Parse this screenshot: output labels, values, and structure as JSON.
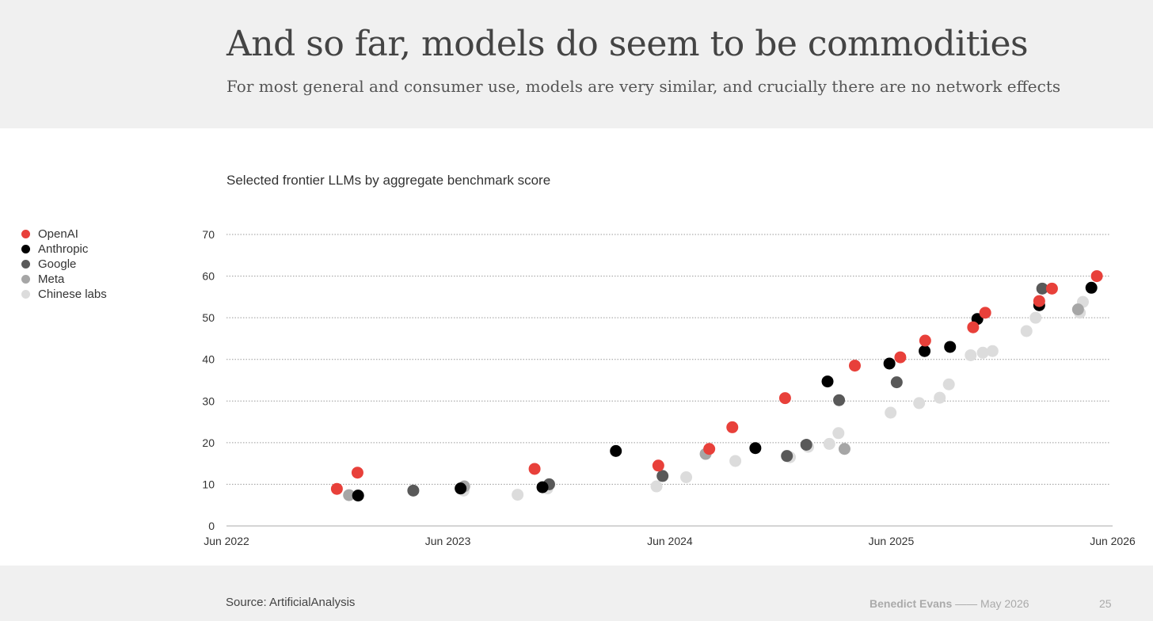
{
  "header": {
    "title": "And so far, models do seem to be commodities",
    "subtitle": "For most general and consumer use, models are very similar, and crucially there are no network effects"
  },
  "footer": {
    "source": "Source: ArtificialAnalysis",
    "author": "Benedict Evans",
    "separator": "——",
    "date": "May 2026",
    "page": "25"
  },
  "chart_data": {
    "type": "scatter",
    "title": "Selected frontier LLMs by aggregate benchmark score",
    "xlabel": "",
    "ylabel": "",
    "xlim": [
      "2022-06-01",
      "2026-06-01"
    ],
    "ylim": [
      0,
      70
    ],
    "yticks": [
      0,
      10,
      20,
      30,
      40,
      50,
      60,
      70
    ],
    "xticks": [
      {
        "label": "Jun 2022",
        "date": "2022-06-01"
      },
      {
        "label": "Jun 2023",
        "date": "2023-06-01"
      },
      {
        "label": "Jun 2024",
        "date": "2024-06-01"
      },
      {
        "label": "Jun 2025",
        "date": "2025-06-01"
      },
      {
        "label": "Jun 2026",
        "date": "2026-06-01"
      }
    ],
    "grid": true,
    "legend_position": "left",
    "series": [
      {
        "name": "Chinese labs",
        "color": "#dcdcdc",
        "points": [
          {
            "x": "2023-09-24",
            "y": 7.5
          },
          {
            "x": "2023-06-27",
            "y": 8.5
          },
          {
            "x": "2023-11-12",
            "y": 9
          },
          {
            "x": "2024-05-10",
            "y": 9.5
          },
          {
            "x": "2024-06-28",
            "y": 11.7
          },
          {
            "x": "2024-09-17",
            "y": 15.6
          },
          {
            "x": "2024-12-16",
            "y": 16.5
          },
          {
            "x": "2025-01-15",
            "y": 19
          },
          {
            "x": "2025-02-19",
            "y": 19.7
          },
          {
            "x": "2025-03-06",
            "y": 22.3
          },
          {
            "x": "2025-05-31",
            "y": 27.2
          },
          {
            "x": "2025-07-17",
            "y": 29.5
          },
          {
            "x": "2025-08-20",
            "y": 30.8
          },
          {
            "x": "2025-09-04",
            "y": 34
          },
          {
            "x": "2025-10-10",
            "y": 41
          },
          {
            "x": "2025-10-30",
            "y": 41.6
          },
          {
            "x": "2025-11-15",
            "y": 42
          },
          {
            "x": "2026-01-10",
            "y": 46.8
          },
          {
            "x": "2026-01-25",
            "y": 50
          },
          {
            "x": "2026-04-08",
            "y": 51.2
          },
          {
            "x": "2026-04-13",
            "y": 53.8
          }
        ]
      },
      {
        "name": "Meta",
        "color": "#a6a6a6",
        "points": [
          {
            "x": "2022-12-20",
            "y": 7.4
          },
          {
            "x": "2023-06-28",
            "y": 9.5
          },
          {
            "x": "2024-07-30",
            "y": 17.3
          },
          {
            "x": "2025-03-16",
            "y": 18.5
          },
          {
            "x": "2026-04-05",
            "y": 52
          }
        ]
      },
      {
        "name": "Google",
        "color": "#595959",
        "points": [
          {
            "x": "2023-04-05",
            "y": 8.5
          },
          {
            "x": "2023-11-15",
            "y": 10
          },
          {
            "x": "2024-05-20",
            "y": 12
          },
          {
            "x": "2024-12-11",
            "y": 16.8
          },
          {
            "x": "2025-01-12",
            "y": 19.5
          },
          {
            "x": "2025-03-07",
            "y": 30.2
          },
          {
            "x": "2025-06-10",
            "y": 34.5
          },
          {
            "x": "2026-02-05",
            "y": 57
          }
        ]
      },
      {
        "name": "Anthropic",
        "color": "#000000",
        "points": [
          {
            "x": "2023-01-04",
            "y": 7.3
          },
          {
            "x": "2023-06-22",
            "y": 9
          },
          {
            "x": "2023-11-04",
            "y": 9.3
          },
          {
            "x": "2024-03-04",
            "y": 18
          },
          {
            "x": "2024-10-20",
            "y": 18.7
          },
          {
            "x": "2025-02-16",
            "y": 34.7
          },
          {
            "x": "2025-05-29",
            "y": 39
          },
          {
            "x": "2025-07-26",
            "y": 42
          },
          {
            "x": "2025-09-06",
            "y": 43
          },
          {
            "x": "2025-10-21",
            "y": 49.7
          },
          {
            "x": "2026-01-31",
            "y": 53
          },
          {
            "x": "2026-04-27",
            "y": 57.2
          }
        ]
      },
      {
        "name": "OpenAI",
        "color": "#e8403a",
        "points": [
          {
            "x": "2022-11-30",
            "y": 8.9
          },
          {
            "x": "2023-01-03",
            "y": 12.8
          },
          {
            "x": "2023-10-22",
            "y": 13.7
          },
          {
            "x": "2024-05-13",
            "y": 14.5
          },
          {
            "x": "2024-08-05",
            "y": 18.5
          },
          {
            "x": "2024-09-12",
            "y": 23.7
          },
          {
            "x": "2024-12-08",
            "y": 30.7
          },
          {
            "x": "2025-04-02",
            "y": 38.5
          },
          {
            "x": "2025-06-16",
            "y": 40.5
          },
          {
            "x": "2025-07-27",
            "y": 44.5
          },
          {
            "x": "2025-10-14",
            "y": 47.7
          },
          {
            "x": "2025-11-03",
            "y": 51.2
          },
          {
            "x": "2026-01-31",
            "y": 54
          },
          {
            "x": "2026-02-21",
            "y": 57
          },
          {
            "x": "2026-05-06",
            "y": 60
          }
        ]
      }
    ]
  }
}
